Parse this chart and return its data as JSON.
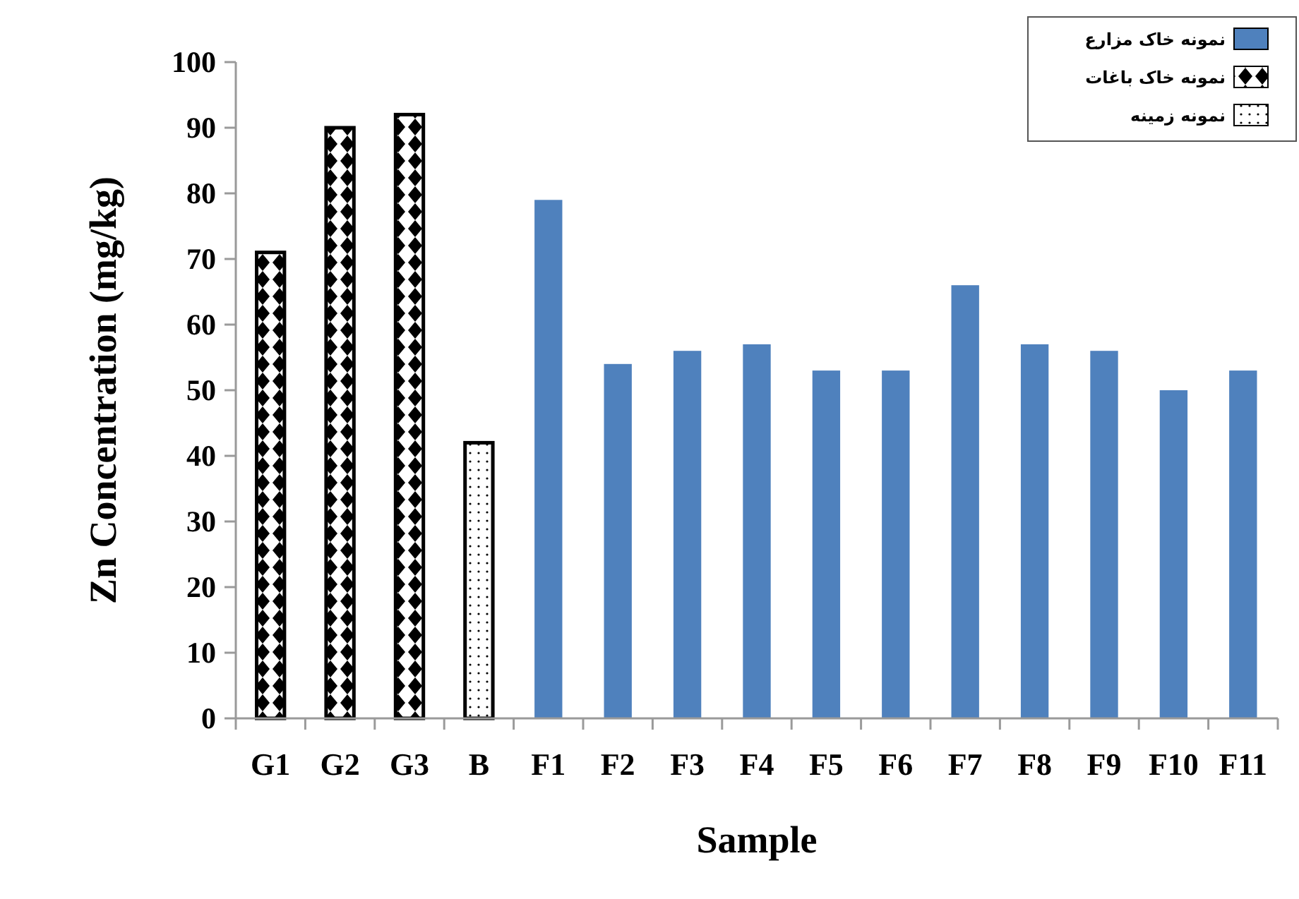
{
  "chart_data": {
    "type": "bar",
    "xlabel": "Sample",
    "ylabel": "Zn Concentration (mg/kg)",
    "categories": [
      "G1",
      "G2",
      "G3",
      "B",
      "F1",
      "F2",
      "F3",
      "F4",
      "F5",
      "F6",
      "F7",
      "F8",
      "F9",
      "F10",
      "F11"
    ],
    "series": [
      {
        "name": "نمونه خاک مزارع",
        "color": "#4f81bd",
        "values": [
          null,
          null,
          null,
          null,
          79,
          54,
          56,
          57,
          53,
          53,
          66,
          57,
          56,
          50,
          53
        ]
      },
      {
        "name": "نمونه خاک باغات",
        "color": "#000000",
        "values": [
          71,
          90,
          92,
          null,
          null,
          null,
          null,
          null,
          null,
          null,
          null,
          null,
          null,
          null,
          null
        ]
      },
      {
        "name": "نمونه زمینه",
        "color": "#000000",
        "values": [
          null,
          null,
          null,
          42,
          null,
          null,
          null,
          null,
          null,
          null,
          null,
          null,
          null,
          null,
          null
        ]
      }
    ],
    "ylim": [
      0,
      100
    ],
    "yticks": [
      0,
      10,
      20,
      30,
      40,
      50,
      60,
      70,
      80,
      90,
      100
    ],
    "grid": false,
    "legend": "top right"
  }
}
